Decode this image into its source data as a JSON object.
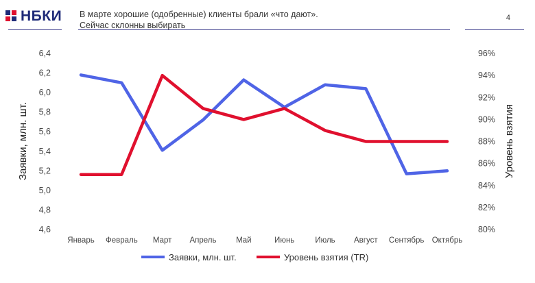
{
  "header": {
    "logo_text": "НБКИ",
    "title_line1": "В марте хорошие (одобренные) клиенты брали «что дают».",
    "title_line2": "Сейчас склонны выбирать",
    "page_number": "4"
  },
  "colors": {
    "series_applications": "#4f64e6",
    "series_take_rate": "#e0102e",
    "logo_blue": "#1e2a78",
    "rule": "#3a3a8a"
  },
  "chart_data": {
    "type": "line",
    "categories": [
      "Январь",
      "Февраль",
      "Март",
      "Апрель",
      "Май",
      "Июнь",
      "Июль",
      "Август",
      "Сентябрь",
      "Октябрь"
    ],
    "series": [
      {
        "name": "Заявки, млн. шт.",
        "axis": "left",
        "values": [
          6.18,
          6.1,
          5.41,
          5.72,
          6.13,
          5.85,
          6.08,
          6.04,
          5.17,
          5.2
        ]
      },
      {
        "name": "Уровень взятия (TR)",
        "axis": "right",
        "values": [
          0.85,
          0.85,
          0.94,
          0.91,
          0.9,
          0.91,
          0.89,
          0.88,
          0.88,
          0.88
        ]
      }
    ],
    "ylabel_left": "Заявки, млн. шт.",
    "ylabel_right": "Уровень взятия",
    "ylim_left": [
      4.6,
      6.4
    ],
    "ylim_right": [
      0.8,
      0.96
    ],
    "yticks_left": [
      "4,6",
      "4,8",
      "5,0",
      "5,2",
      "5,4",
      "5,6",
      "5,8",
      "6,0",
      "6,2",
      "6,4"
    ],
    "yticks_right": [
      "80%",
      "82%",
      "84%",
      "86%",
      "88%",
      "90%",
      "92%",
      "94%",
      "96%"
    ],
    "grid": false,
    "legend": "bottom"
  }
}
